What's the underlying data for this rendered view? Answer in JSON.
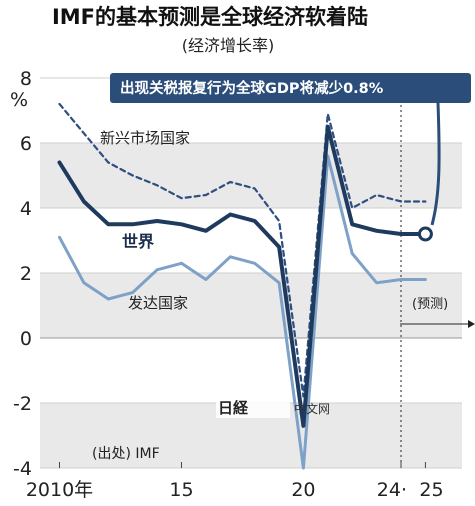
{
  "header": {
    "title": "IMF的基本预测是全球经济软着陆",
    "subtitle": "(经济增长率)"
  },
  "callout": {
    "text": "出现关税报复行为全球GDP将减少0.8%"
  },
  "annotations": {
    "forecast": "(预测)",
    "source": "(出处)  IMF",
    "unit": "%"
  },
  "watermark": {
    "logo_text": "日经",
    "site": "中文网"
  },
  "colors": {
    "world": "#1f3a5f",
    "emerging": "#2e4f80",
    "advanced": "#7ea1c7",
    "callout_bg": "#2a4d7a",
    "band": "#e9e9e9"
  },
  "chart_data": {
    "type": "line",
    "title": "IMF的基本预测是全球经济软着陆",
    "subtitle": "(经济增长率)",
    "ylabel": "%",
    "ylim": [
      -4,
      8
    ],
    "yticks": [
      -4,
      -2,
      0,
      2,
      4,
      6,
      8
    ],
    "xticks": [
      {
        "year": 2010,
        "label": "2010年"
      },
      {
        "year": 2015,
        "label": "15"
      },
      {
        "year": 2020,
        "label": "20"
      },
      {
        "year": 2024,
        "label": "24"
      },
      {
        "year": 2025,
        "label": "25"
      }
    ],
    "forecast_start": 2024,
    "series": [
      {
        "name": "新兴市场国家",
        "style": "dashed",
        "x": [
          2010,
          2011,
          2012,
          2013,
          2014,
          2015,
          2016,
          2017,
          2018,
          2019,
          2020,
          2021,
          2022,
          2023,
          2024,
          2025
        ],
        "y": [
          7.2,
          6.3,
          5.4,
          5.0,
          4.7,
          4.3,
          4.4,
          4.8,
          4.6,
          3.6,
          -1.8,
          6.9,
          4.0,
          4.4,
          4.2,
          4.2
        ]
      },
      {
        "name": "世界",
        "style": "solid-thick",
        "x": [
          2010,
          2011,
          2012,
          2013,
          2014,
          2015,
          2016,
          2017,
          2018,
          2019,
          2020,
          2021,
          2022,
          2023,
          2024,
          2025
        ],
        "y": [
          5.4,
          4.2,
          3.5,
          3.5,
          3.6,
          3.5,
          3.3,
          3.8,
          3.6,
          2.8,
          -2.7,
          6.5,
          3.5,
          3.3,
          3.2,
          3.2
        ]
      },
      {
        "name": "发达国家",
        "style": "solid",
        "x": [
          2010,
          2011,
          2012,
          2013,
          2014,
          2015,
          2016,
          2017,
          2018,
          2019,
          2020,
          2021,
          2022,
          2023,
          2024,
          2025
        ],
        "y": [
          3.1,
          1.7,
          1.2,
          1.4,
          2.1,
          2.3,
          1.8,
          2.5,
          2.3,
          1.7,
          -4.0,
          5.6,
          2.6,
          1.7,
          1.8,
          1.8
        ]
      }
    ]
  }
}
